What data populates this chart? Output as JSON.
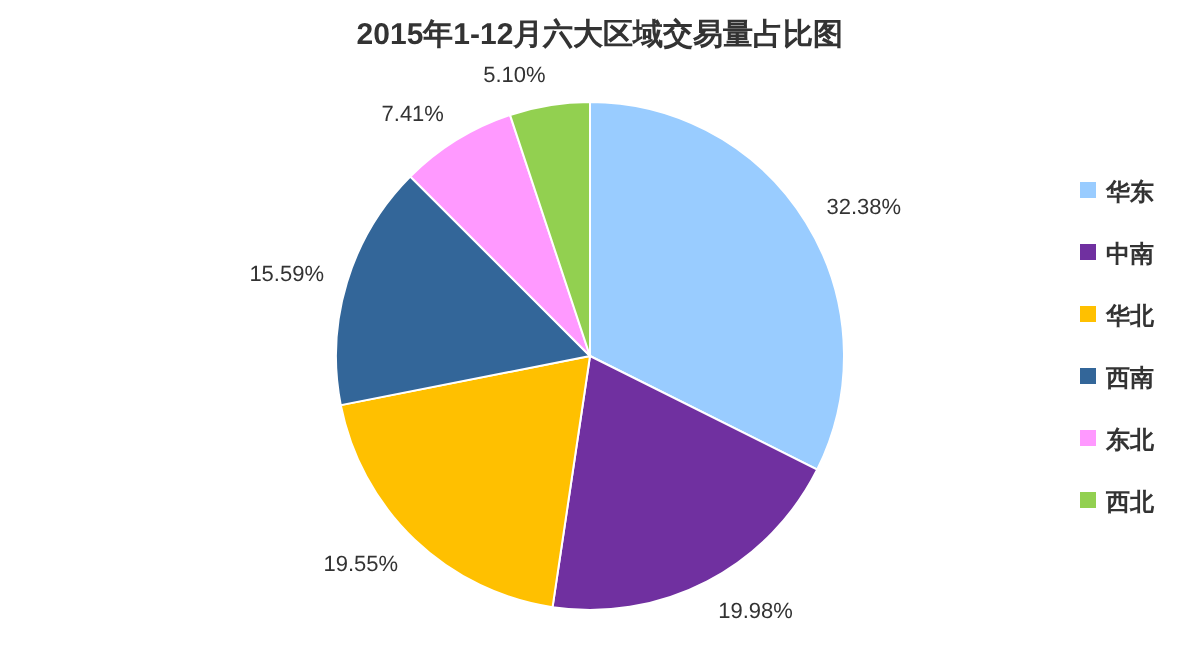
{
  "chart_data": {
    "type": "pie",
    "title": "2015年1-12月六大区域交易量占比图",
    "categories": [
      "华东",
      "中南",
      "华北",
      "西南",
      "东北",
      "西北"
    ],
    "values": [
      32.38,
      19.98,
      19.55,
      15.59,
      7.41,
      5.1
    ],
    "value_labels": [
      "32.38%",
      "19.98%",
      "19.55%",
      "15.59%",
      "7.41%",
      "5.10%"
    ],
    "colors": [
      "#99ccff",
      "#7030a0",
      "#ffc000",
      "#336699",
      "#ff99ff",
      "#92d050"
    ],
    "legend": "right"
  }
}
